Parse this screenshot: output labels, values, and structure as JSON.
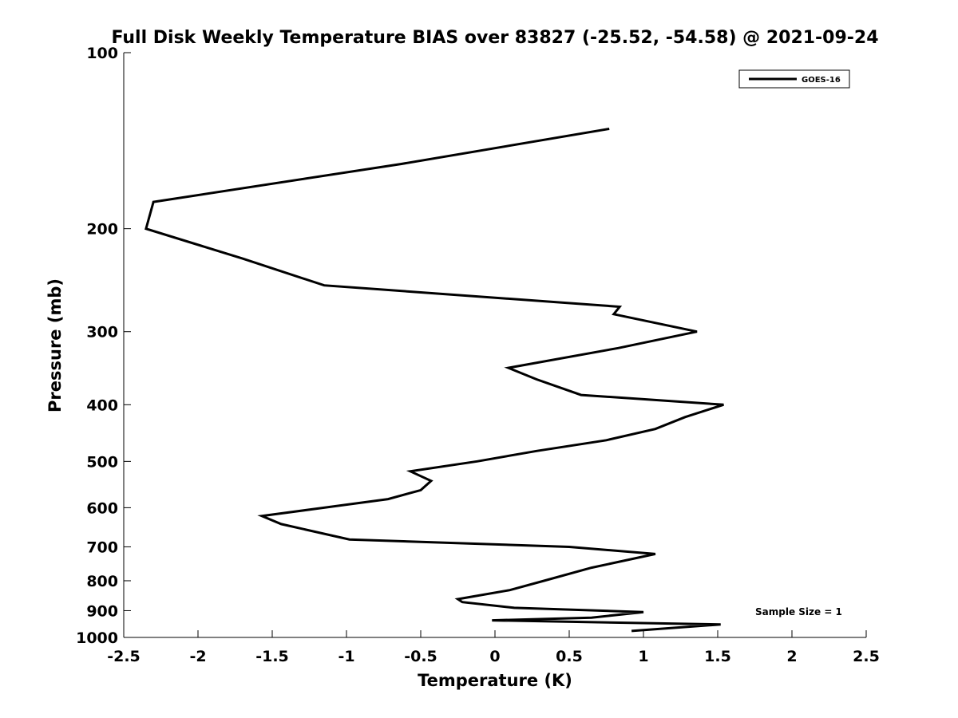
{
  "chart_data": {
    "type": "line",
    "title": "Full Disk Weekly Temperature BIAS over 83827 (-25.52, -54.58) @ 2021-09-24",
    "xlabel": "Temperature (K)",
    "ylabel": "Pressure (mb)",
    "xlim": [
      -2.5,
      2.5
    ],
    "ylim": [
      100,
      1000
    ],
    "yscale": "log",
    "y_reversed": true,
    "xticks": [
      -2.5,
      -2,
      -1.5,
      -1,
      -0.5,
      0,
      0.5,
      1,
      1.5,
      2,
      2.5
    ],
    "xtick_labels": [
      "-2.5",
      "-2",
      "-1.5",
      "-1",
      "-0.5",
      "0",
      "0.5",
      "1",
      "1.5",
      "2",
      "2.5"
    ],
    "yticks": [
      100,
      200,
      300,
      400,
      500,
      600,
      700,
      800,
      900,
      1000
    ],
    "ytick_labels": [
      "100",
      "200",
      "300",
      "400",
      "500",
      "600",
      "700",
      "800",
      "900",
      "1000"
    ],
    "grid": false,
    "legend_position": "top-right",
    "annotation": "Sample Size = 1",
    "series": [
      {
        "name": "GOES-16",
        "color": "#000000",
        "points": [
          {
            "x": 0.77,
            "p": 135
          },
          {
            "x": -0.63,
            "p": 155
          },
          {
            "x": -2.3,
            "p": 180
          },
          {
            "x": -2.35,
            "p": 200
          },
          {
            "x": -1.7,
            "p": 225
          },
          {
            "x": -1.15,
            "p": 250
          },
          {
            "x": 0.84,
            "p": 272
          },
          {
            "x": 0.8,
            "p": 280
          },
          {
            "x": 1.36,
            "p": 300
          },
          {
            "x": 0.83,
            "p": 320
          },
          {
            "x": 0.09,
            "p": 346
          },
          {
            "x": 0.28,
            "p": 362
          },
          {
            "x": 0.58,
            "p": 385
          },
          {
            "x": 1.54,
            "p": 400
          },
          {
            "x": 1.28,
            "p": 420
          },
          {
            "x": 1.08,
            "p": 440
          },
          {
            "x": 0.75,
            "p": 460
          },
          {
            "x": 0.28,
            "p": 480
          },
          {
            "x": -0.12,
            "p": 500
          },
          {
            "x": -0.57,
            "p": 520
          },
          {
            "x": -0.43,
            "p": 540
          },
          {
            "x": -0.5,
            "p": 560
          },
          {
            "x": -0.72,
            "p": 580
          },
          {
            "x": -1.57,
            "p": 620
          },
          {
            "x": -1.44,
            "p": 640
          },
          {
            "x": -0.98,
            "p": 680
          },
          {
            "x": 0.5,
            "p": 700
          },
          {
            "x": 1.08,
            "p": 720
          },
          {
            "x": 0.65,
            "p": 760
          },
          {
            "x": 0.33,
            "p": 800
          },
          {
            "x": 0.1,
            "p": 830
          },
          {
            "x": -0.25,
            "p": 860
          },
          {
            "x": -0.22,
            "p": 870
          },
          {
            "x": 0.13,
            "p": 890
          },
          {
            "x": 1.0,
            "p": 905
          },
          {
            "x": 0.65,
            "p": 925
          },
          {
            "x": -0.02,
            "p": 935
          },
          {
            "x": 1.52,
            "p": 950
          },
          {
            "x": 0.92,
            "p": 975
          }
        ]
      }
    ]
  }
}
